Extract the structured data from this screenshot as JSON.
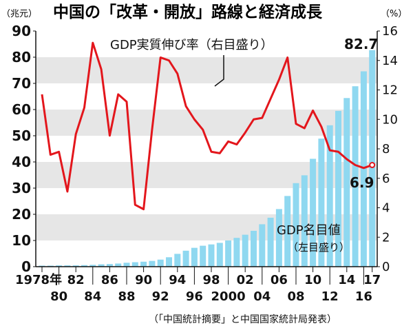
{
  "header": {
    "left_unit": "（兆元）",
    "title": "中国の「改革・開放」路線と経済成長",
    "right_unit": "（%）"
  },
  "source": "（「中国統計摘要」と中国国家統計局発表）",
  "colors": {
    "bar": "#8fd8f0",
    "line": "#e3161c",
    "band": "#e6e6e6",
    "text": "#111111"
  },
  "chart_data": {
    "type": "bar+line",
    "x": [
      1978,
      1979,
      1980,
      1981,
      1982,
      1983,
      1984,
      1985,
      1986,
      1987,
      1988,
      1989,
      1990,
      1991,
      1992,
      1993,
      1994,
      1995,
      1996,
      1997,
      1998,
      1999,
      2000,
      2001,
      2002,
      2003,
      2004,
      2005,
      2006,
      2007,
      2008,
      2009,
      2010,
      2011,
      2012,
      2013,
      2014,
      2015,
      2016,
      2017
    ],
    "x_tick_labels": [
      "1978年",
      "80",
      "82",
      "84",
      "86",
      "88",
      "90",
      "92",
      "94",
      "96",
      "98",
      "2000",
      "02",
      "04",
      "06",
      "08",
      "10",
      "12",
      "14",
      "16",
      "17"
    ],
    "y_left": {
      "label": "GDP名目値",
      "axis_note": "（左目盛り）",
      "unit": "兆元",
      "ticks": [
        "0",
        "10",
        "20",
        "30",
        "40",
        "50",
        "60",
        "70",
        "80",
        "90"
      ],
      "ylim": [
        0,
        90
      ]
    },
    "y_right": {
      "label": "GDP実質伸び率",
      "axis_note": "（右目盛り）",
      "unit": "%",
      "ticks": [
        "0",
        "2",
        "4",
        "6",
        "8",
        "10",
        "12",
        "14",
        "16"
      ],
      "ylim": [
        0,
        16
      ]
    },
    "series": [
      {
        "name": "GDP名目値",
        "kind": "bar",
        "axis": "left",
        "values": [
          0.4,
          0.4,
          0.5,
          0.5,
          0.5,
          0.6,
          0.7,
          0.9,
          1.0,
          1.2,
          1.5,
          1.7,
          1.9,
          2.2,
          2.7,
          3.6,
          4.9,
          6.1,
          7.2,
          8.0,
          8.5,
          9.1,
          10.0,
          11.0,
          12.2,
          13.7,
          16.2,
          18.7,
          22.0,
          27.0,
          31.9,
          34.9,
          41.2,
          48.9,
          54.0,
          59.5,
          64.4,
          68.9,
          74.6,
          82.7
        ]
      },
      {
        "name": "GDP実質伸び率",
        "kind": "line",
        "axis": "right",
        "values": [
          11.7,
          7.6,
          7.8,
          5.1,
          9.0,
          10.8,
          15.2,
          13.4,
          8.9,
          11.7,
          11.2,
          4.2,
          3.9,
          9.3,
          14.2,
          14.0,
          13.1,
          10.9,
          10.0,
          9.3,
          7.8,
          7.7,
          8.5,
          8.3,
          9.1,
          10.0,
          10.1,
          11.4,
          12.7,
          14.2,
          9.7,
          9.4,
          10.6,
          9.5,
          7.9,
          7.8,
          7.3,
          6.9,
          6.7,
          6.9
        ]
      }
    ],
    "annotations": {
      "last_bar_value": "82.7",
      "last_line_value": "6.9",
      "line_label": "GDP実質伸び率（右目盛り）",
      "bar_label_1": "GDP名目値",
      "bar_label_2": "（左目盛り）"
    }
  }
}
